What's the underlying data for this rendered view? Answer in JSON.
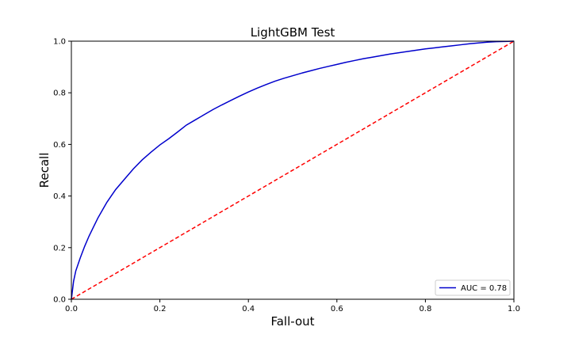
{
  "chart_data": {
    "type": "line",
    "title": "LightGBM Test",
    "xlabel": "Fall-out",
    "ylabel": "Recall",
    "xlim": [
      0,
      1
    ],
    "ylim": [
      0,
      1
    ],
    "xticks": [
      0,
      0.2,
      0.4,
      0.6,
      0.8,
      1.0
    ],
    "xtick_labels": [
      "0.0",
      "0.2",
      "0.4",
      "0.6",
      "0.8",
      "1.0"
    ],
    "yticks": [
      0,
      0.2,
      0.4,
      0.6,
      0.8,
      1.0
    ],
    "ytick_labels": [
      "0.0",
      "0.2",
      "0.4",
      "0.6",
      "0.8",
      "1.0"
    ],
    "grid": false,
    "legend_position": "lower-right",
    "series": [
      {
        "name": "AUC = 0.78",
        "color": "#0000cc",
        "style": "solid",
        "x": [
          0,
          0.005,
          0.01,
          0.02,
          0.03,
          0.04,
          0.05,
          0.06,
          0.07,
          0.08,
          0.09,
          0.1,
          0.12,
          0.14,
          0.16,
          0.18,
          0.2,
          0.22,
          0.24,
          0.26,
          0.28,
          0.3,
          0.32,
          0.34,
          0.36,
          0.38,
          0.4,
          0.42,
          0.44,
          0.46,
          0.48,
          0.5,
          0.52,
          0.54,
          0.56,
          0.58,
          0.6,
          0.62,
          0.64,
          0.66,
          0.68,
          0.7,
          0.72,
          0.74,
          0.76,
          0.78,
          0.8,
          0.82,
          0.84,
          0.86,
          0.88,
          0.9,
          0.92,
          0.94,
          0.96,
          0.98,
          1.0
        ],
        "y": [
          0,
          0.07,
          0.11,
          0.16,
          0.205,
          0.245,
          0.28,
          0.315,
          0.345,
          0.375,
          0.4,
          0.425,
          0.465,
          0.505,
          0.54,
          0.57,
          0.598,
          0.622,
          0.648,
          0.675,
          0.695,
          0.715,
          0.735,
          0.753,
          0.77,
          0.787,
          0.803,
          0.818,
          0.832,
          0.845,
          0.856,
          0.866,
          0.876,
          0.885,
          0.894,
          0.902,
          0.91,
          0.918,
          0.925,
          0.932,
          0.938,
          0.944,
          0.95,
          0.955,
          0.96,
          0.965,
          0.97,
          0.974,
          0.978,
          0.982,
          0.986,
          0.99,
          0.993,
          0.996,
          0.998,
          0.999,
          1.0
        ]
      },
      {
        "name": "",
        "color": "#ff0000",
        "style": "dashed",
        "x": [
          0,
          1
        ],
        "y": [
          0,
          1
        ]
      }
    ]
  }
}
